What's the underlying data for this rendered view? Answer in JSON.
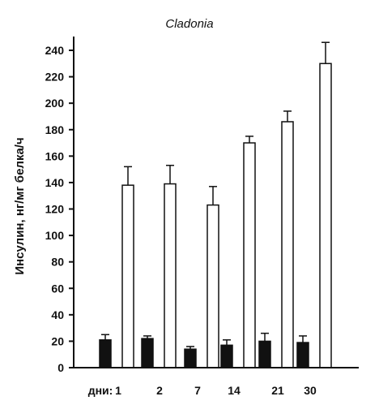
{
  "chart_data": {
    "type": "bar",
    "title": "Cladonia",
    "ylabel": "Инсулин, нг/мг белка/ч",
    "x_prefix": "дни:",
    "categories": [
      "1",
      "2",
      "7",
      "14",
      "21",
      "30"
    ],
    "ylim": [
      0,
      240
    ],
    "yticks": [
      0,
      20,
      40,
      60,
      80,
      100,
      120,
      140,
      160,
      180,
      200,
      220,
      240
    ],
    "series": [
      {
        "style": "filled",
        "values": [
          21,
          22,
          14,
          17,
          20,
          19
        ],
        "errors": [
          4,
          2,
          2,
          4,
          6,
          5
        ]
      },
      {
        "style": "empty",
        "values": [
          138,
          139,
          123,
          170,
          186,
          230
        ],
        "errors": [
          14,
          14,
          14,
          5,
          8,
          16
        ]
      }
    ],
    "grid": false,
    "legend": "none"
  }
}
